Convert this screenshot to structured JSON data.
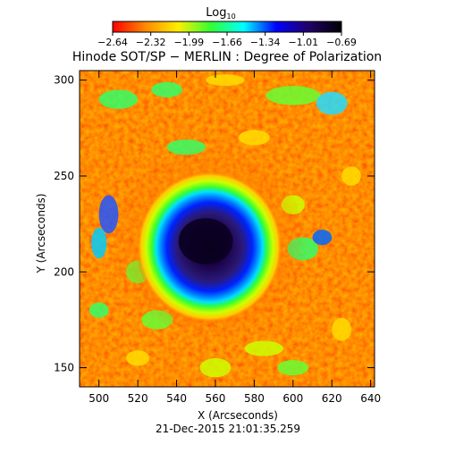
{
  "colorbar": {
    "title_main": "Log",
    "title_sub": "10",
    "ticks": [
      "−2.64",
      "−2.32",
      "−1.99",
      "−1.66",
      "−1.34",
      "−1.01",
      "−0.69"
    ],
    "range": [
      -2.64,
      -0.69
    ],
    "colors": [
      "#ff0000",
      "#ff8800",
      "#ffee00",
      "#33ff33",
      "#00ffff",
      "#0000ff",
      "#220066",
      "#000000"
    ]
  },
  "chart_data": {
    "type": "heatmap",
    "title": "Hinode SOT/SP − MERLIN : Degree of Polarization",
    "xlabel": "X (Arcseconds)",
    "ylabel": "Y (Arcseconds)",
    "xlim": [
      490,
      642
    ],
    "ylim": [
      140,
      305
    ],
    "xticks": [
      500,
      520,
      540,
      560,
      580,
      600,
      620,
      640
    ],
    "yticks": [
      150,
      200,
      250,
      300
    ],
    "value_label": "Log10 Degree of Polarization",
    "features": {
      "umbra_center_xy": [
        557,
        213
      ],
      "umbra_value": -0.75,
      "background_value": -2.55
    }
  },
  "footer": {
    "timestamp": "21-Dec-2015 21:01:35.259"
  }
}
